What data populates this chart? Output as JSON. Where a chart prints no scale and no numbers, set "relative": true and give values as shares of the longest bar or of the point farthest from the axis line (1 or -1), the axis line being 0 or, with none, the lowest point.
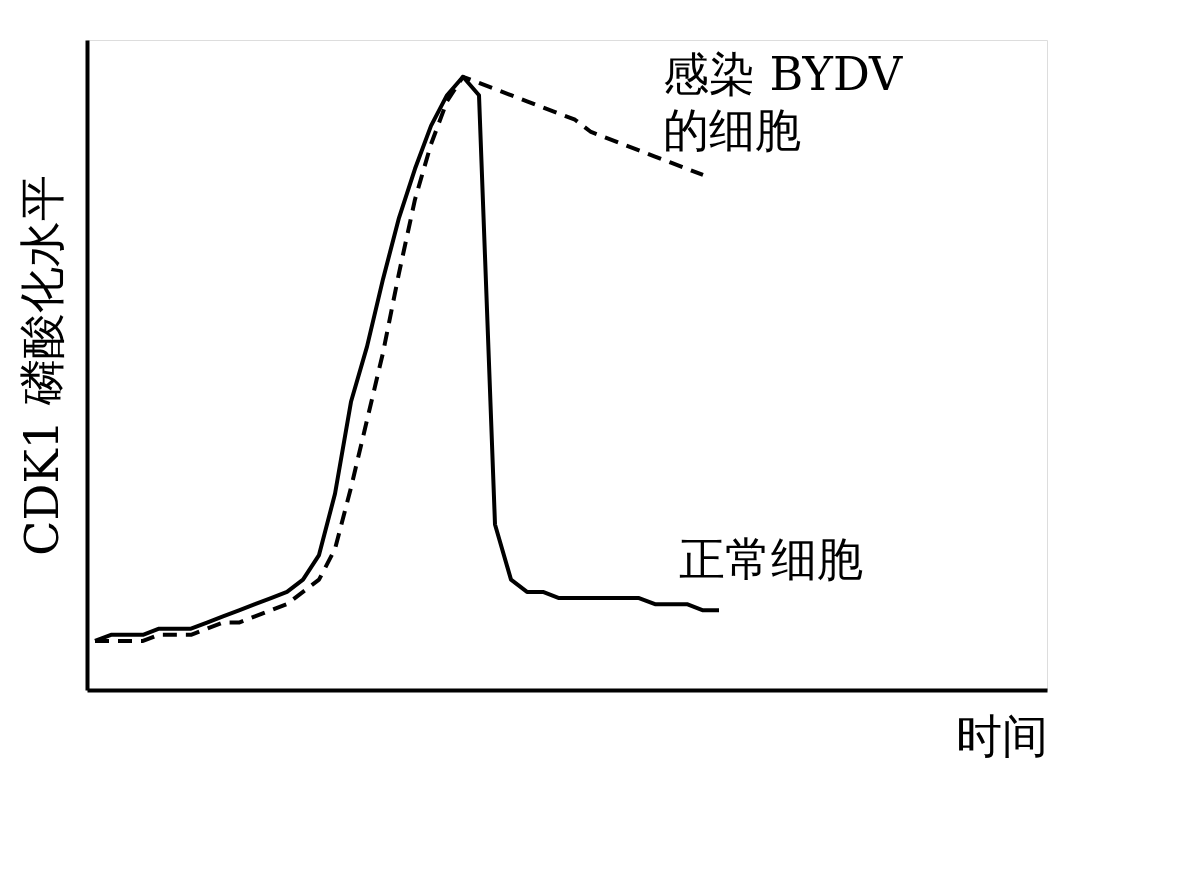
{
  "chart_data": {
    "type": "line",
    "relative": true,
    "xlabel": "时间",
    "ylabel": "CDK1 磷酸化水平",
    "grid": false,
    "marker": "none",
    "categories": [
      null,
      null,
      null,
      null,
      null,
      null,
      null,
      null,
      null,
      null,
      null,
      null,
      null,
      null,
      null,
      null,
      null,
      null,
      null,
      null,
      null,
      null,
      null,
      null,
      null,
      null,
      null,
      null,
      null,
      null,
      null,
      null,
      null,
      null,
      null,
      null,
      null,
      null,
      null,
      null,
      null,
      null,
      null,
      null,
      null,
      null,
      null,
      null,
      null,
      null,
      null,
      null,
      null,
      null,
      null,
      null,
      null,
      null,
      null,
      null
    ],
    "series": [
      {
        "name": "正常细胞",
        "color": "#000000",
        "line_style": "solid",
        "values": [
          0.08,
          0.09,
          0.09,
          0.09,
          0.1,
          0.1,
          0.1,
          0.11,
          0.12,
          0.13,
          0.14,
          0.15,
          0.16,
          0.18,
          0.22,
          0.32,
          0.47,
          0.56,
          0.67,
          0.77,
          0.85,
          0.92,
          0.97,
          1,
          0.97,
          0.27,
          0.18,
          0.16,
          0.16,
          0.15,
          0.15,
          0.15,
          0.15,
          0.15,
          0.15,
          0.14,
          0.14,
          0.14,
          0.13,
          0.13,
          null,
          null,
          null,
          null,
          null,
          null,
          null,
          null,
          null,
          null,
          null,
          null,
          null,
          null,
          null,
          null,
          null,
          null,
          null,
          null
        ]
      },
      {
        "name": "感染 BYDV\n的细胞",
        "color": "#000000",
        "line_style": "dashed",
        "values": [
          0.08,
          0.08,
          0.08,
          0.08,
          0.09,
          0.09,
          0.09,
          0.1,
          0.11,
          0.11,
          0.12,
          0.13,
          0.14,
          0.16,
          0.18,
          0.23,
          0.33,
          0.44,
          0.55,
          0.68,
          0.8,
          0.89,
          0.96,
          1,
          0.99,
          0.98,
          0.97,
          0.96,
          0.95,
          0.94,
          0.93,
          0.91,
          0.9,
          0.89,
          0.88,
          0.87,
          0.86,
          0.85,
          0.84,
          null,
          null,
          null,
          null,
          null,
          null,
          null,
          null,
          null,
          null,
          null,
          null,
          null,
          null,
          null,
          null,
          null,
          null,
          null,
          null,
          null
        ]
      }
    ]
  }
}
